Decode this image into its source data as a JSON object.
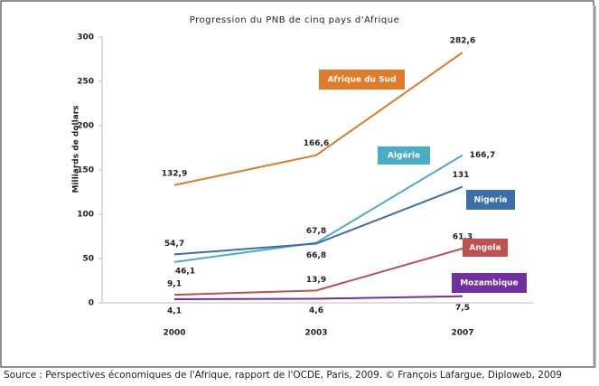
{
  "chart_data": {
    "type": "line",
    "title": "Progression du PNB de cinq pays d'Afrique",
    "y_label": "Milliards de dollars",
    "source": "Source : Perspectives économiques de l'Afrique, rapport de l'OCDE, Paris, 2009. © François Lafargue, Diploweb, 2009",
    "categories": [
      "2000",
      "2003",
      "2007"
    ],
    "series": [
      {
        "name": "Afrique du Sud",
        "color": "#e07b2a",
        "values": [
          132.9,
          166.6,
          282.6
        ],
        "value_labels": [
          "132,9",
          "166,6",
          "282,6"
        ]
      },
      {
        "name": "Algérie",
        "color": "#4bacc6",
        "values": [
          46.1,
          67.8,
          166.7
        ],
        "value_labels": [
          "46,1",
          "67,8",
          "166,7"
        ]
      },
      {
        "name": "Nigeria",
        "color": "#3c6ea8",
        "values": [
          54.7,
          66.8,
          131
        ],
        "value_labels": [
          "54,7",
          "66,8",
          "131"
        ]
      },
      {
        "name": "Angola",
        "color": "#c0504d",
        "values": [
          9.1,
          13.9,
          61.3
        ],
        "value_labels": [
          "9,1",
          "13,9",
          "61,3"
        ]
      },
      {
        "name": "Mozambique",
        "color": "#7030a0",
        "values": [
          4.1,
          4.6,
          7.5
        ],
        "value_labels": [
          "4,1",
          "4,6",
          "7,5"
        ]
      }
    ],
    "ylim": [
      0,
      300
    ],
    "yticks": [
      0,
      50,
      100,
      150,
      200,
      250,
      300
    ],
    "grid": false
  }
}
